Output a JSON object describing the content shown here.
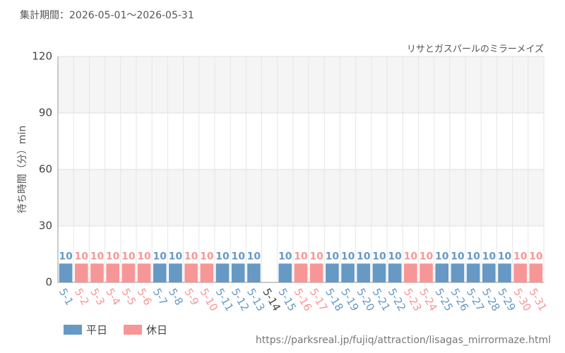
{
  "chart_data": {
    "type": "bar",
    "title": "集計期間：2026-05-01～2026-05-31",
    "subtitle": "リサとガスパールのミラーメイズ",
    "y_label": "待ち時間（分）min",
    "source": "https://parksreal.jp/fujiq/attraction/lisagas_mirrormaze.html",
    "categories": [
      "5-1",
      "5-2",
      "5-3",
      "5-4",
      "5-5",
      "5-6",
      "5-7",
      "5-8",
      "5-9",
      "5-10",
      "5-11",
      "5-12",
      "5-13",
      "5-14",
      "5-15",
      "5-16",
      "5-17",
      "5-18",
      "5-19",
      "5-20",
      "5-21",
      "5-22",
      "5-23",
      "5-24",
      "5-25",
      "5-26",
      "5-27",
      "5-28",
      "5-29",
      "5-30",
      "5-31"
    ],
    "series": [
      {
        "name": "平日",
        "color": "#6699c4",
        "values": [
          10,
          null,
          null,
          null,
          null,
          null,
          10,
          10,
          null,
          null,
          10,
          10,
          10,
          null,
          10,
          null,
          null,
          10,
          10,
          10,
          10,
          10,
          null,
          null,
          10,
          10,
          10,
          10,
          10,
          null,
          null
        ]
      },
      {
        "name": "休日",
        "color": "#f79696",
        "values": [
          null,
          10,
          10,
          10,
          10,
          10,
          null,
          null,
          10,
          10,
          null,
          null,
          null,
          null,
          null,
          10,
          10,
          null,
          null,
          null,
          null,
          null,
          10,
          10,
          null,
          null,
          null,
          null,
          null,
          10,
          10
        ]
      }
    ],
    "ylim": [
      0,
      120
    ],
    "yticks": [
      0,
      30,
      60,
      90,
      120
    ],
    "grid": true
  }
}
